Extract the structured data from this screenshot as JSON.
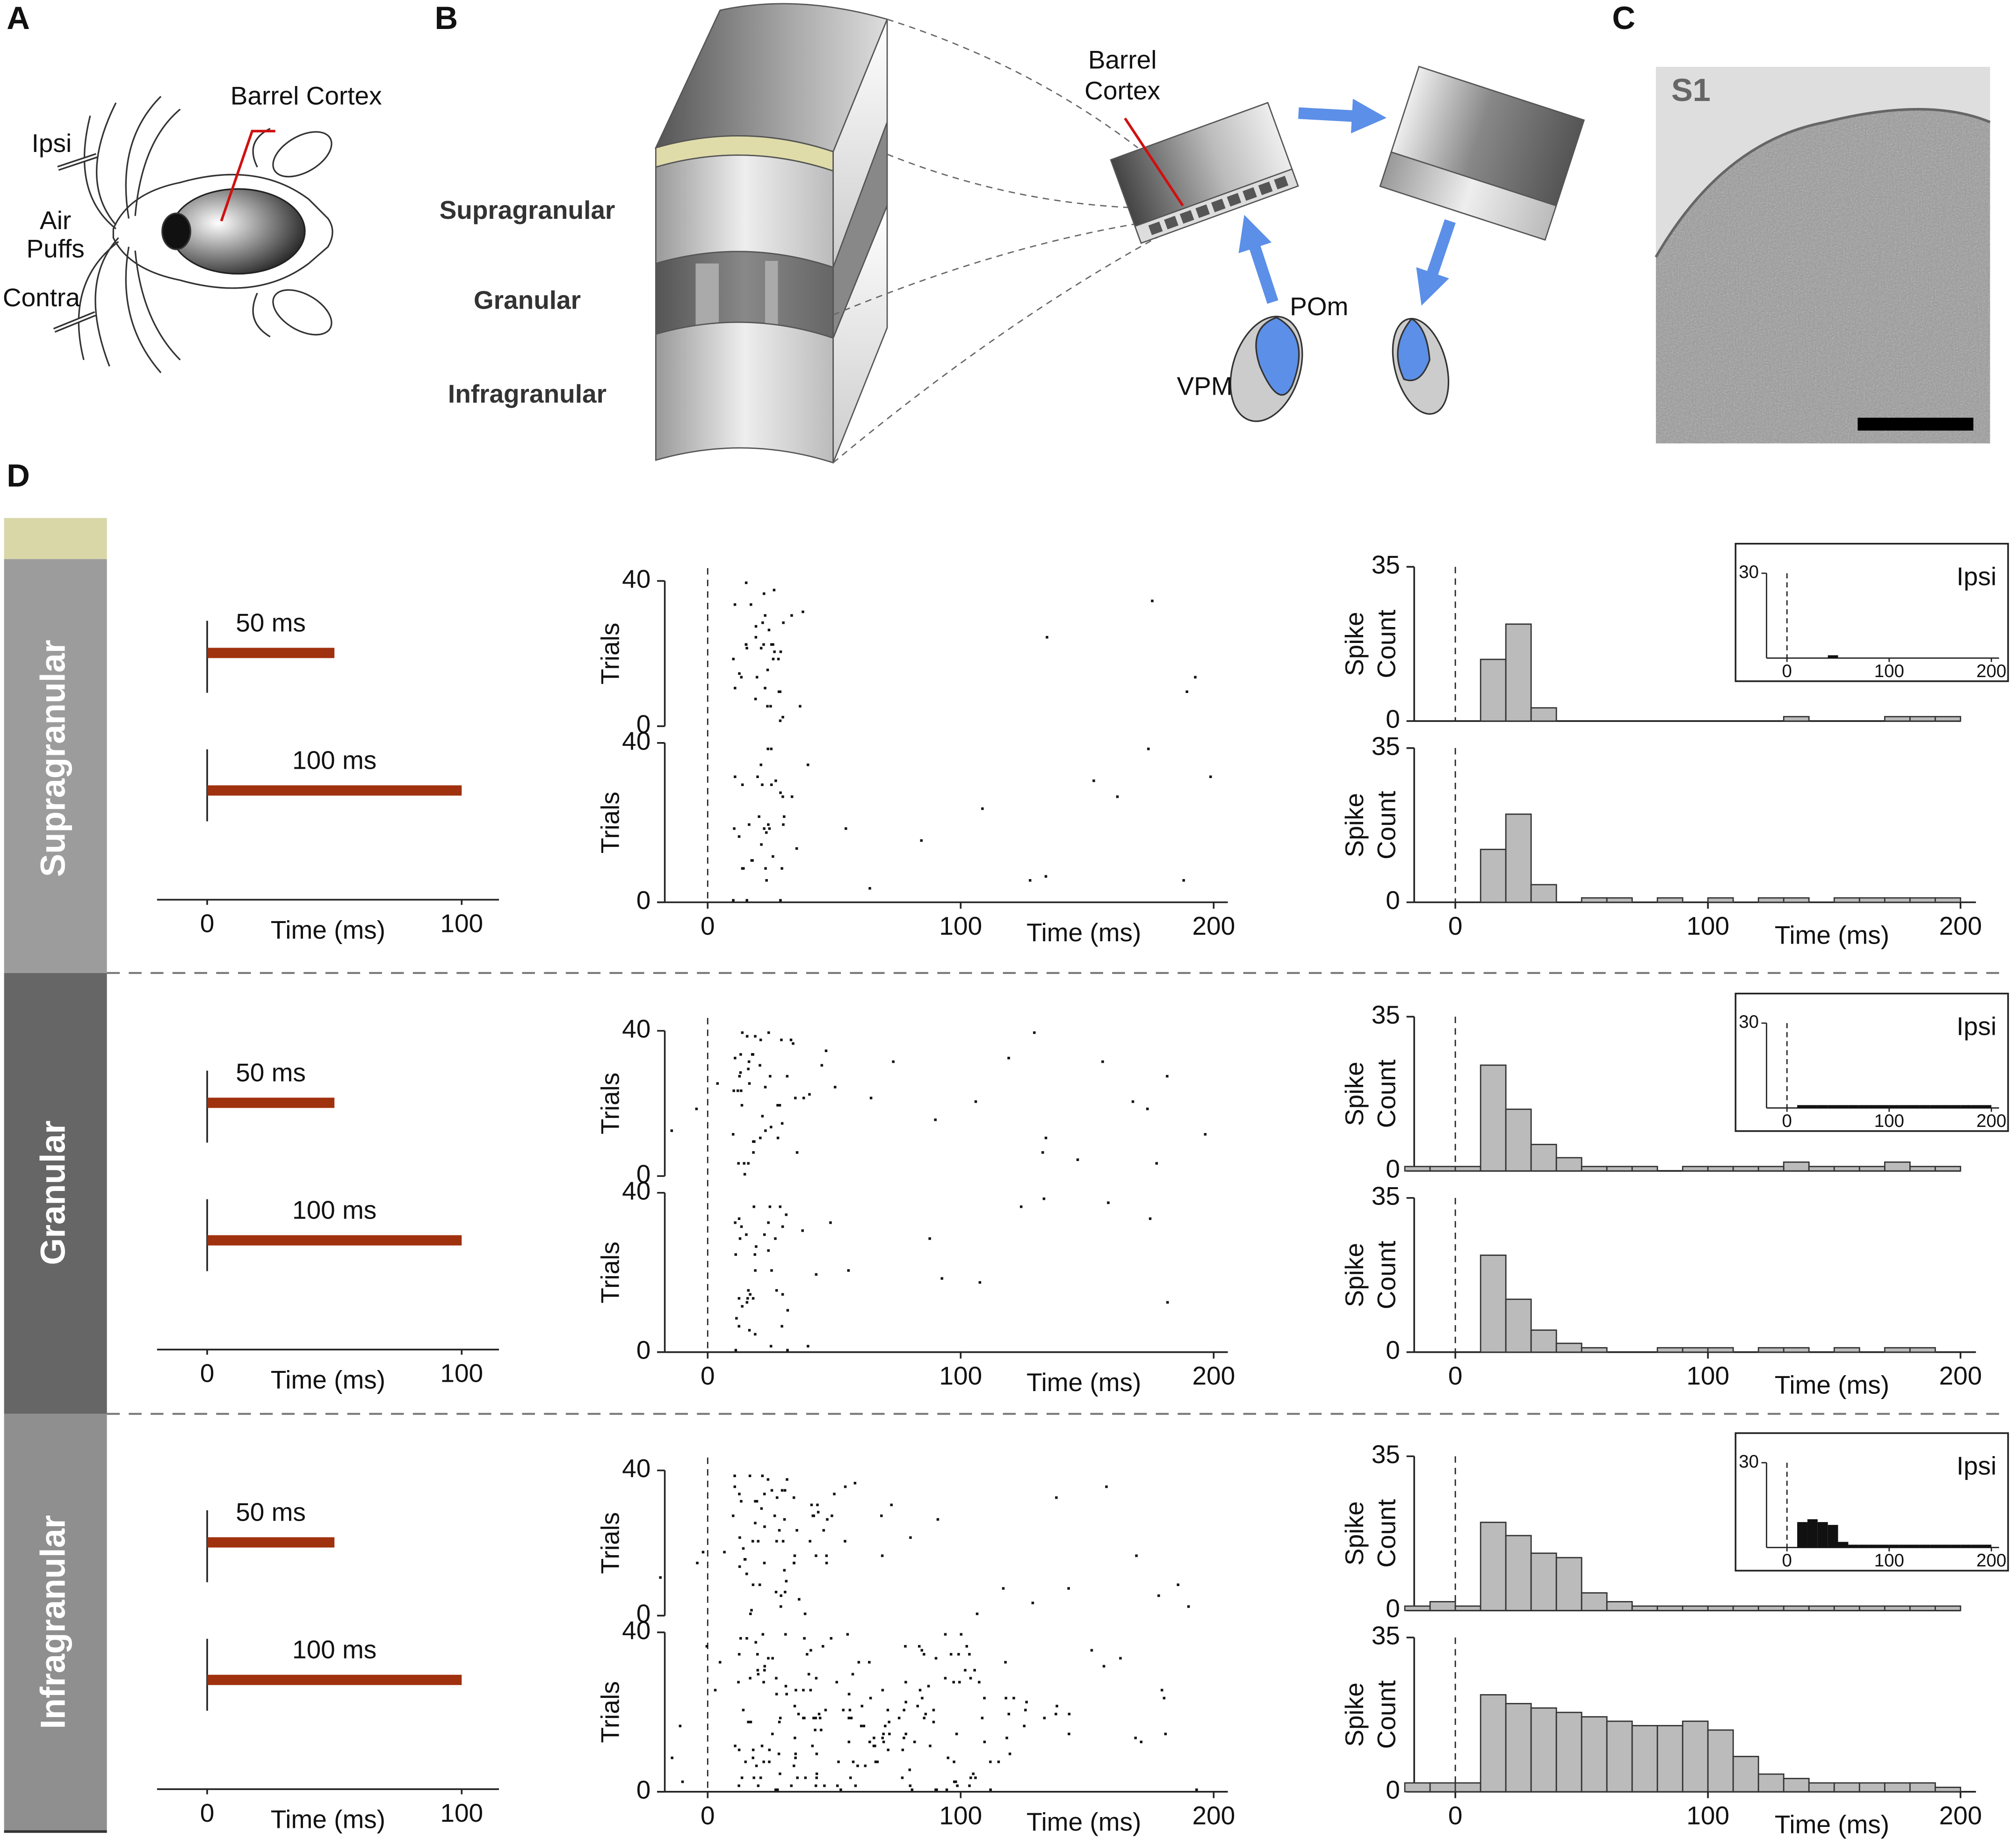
{
  "panel_labels": [
    "A",
    "B",
    "C",
    "D"
  ],
  "panel_a": {
    "barrel": "Barrel Cortex",
    "ipsi": "Ipsi",
    "air": [
      "Air",
      "Puffs"
    ],
    "contra": "Contra"
  },
  "panel_b": {
    "layers": [
      "Supragranular",
      "Granular",
      "Infragranular"
    ],
    "barrel": [
      "Barrel",
      "Cortex"
    ],
    "pom": "POm",
    "vpm": "VPM"
  },
  "panel_c": {
    "label": "S1"
  },
  "panel_d": {
    "time_label": "Time (ms)",
    "stim": {
      "xticks": [
        0,
        100
      ]
    },
    "raster": {
      "ylabel": "Trials",
      "ylim": [
        0,
        40
      ],
      "yticks": [
        0,
        40
      ],
      "xlim": [
        -20,
        200
      ],
      "xticks": [
        0,
        100,
        200
      ]
    },
    "hist": {
      "ylabel": [
        "Spike",
        "Count"
      ],
      "ylim": [
        0,
        35
      ],
      "yticks": [
        0,
        35
      ],
      "xticks": [
        0,
        100,
        200
      ],
      "bins": [
        -20,
        -10,
        0,
        10,
        20,
        30,
        40,
        50,
        60,
        70,
        80,
        90,
        100,
        110,
        120,
        130,
        140,
        150,
        160,
        170,
        180,
        190,
        200
      ]
    },
    "inset": {
      "label": "Ipsi",
      "ylim": [
        0,
        30
      ],
      "yticks": [
        30
      ],
      "xticks": [
        0,
        100,
        200
      ]
    },
    "rows": [
      {
        "name": "Supragranular",
        "stimuli": [
          {
            "label": "50 ms",
            "duration": 50,
            "counts": [
              0,
              0,
              0,
              14,
              22,
              3,
              0,
              0,
              0,
              0,
              0,
              0,
              0,
              0,
              0,
              1,
              0,
              0,
              0,
              1,
              1,
              1
            ]
          },
          {
            "label": "100 ms",
            "duration": 100,
            "counts": [
              0,
              0,
              0,
              12,
              20,
              4,
              0,
              1,
              1,
              0,
              1,
              0,
              1,
              0,
              1,
              1,
              0,
              1,
              1,
              1,
              1,
              1
            ]
          }
        ],
        "inset_counts": [
          0,
          0,
          0,
          0,
          0,
          0,
          1,
          0,
          0,
          0,
          0,
          0,
          0,
          0,
          0,
          0,
          0,
          0,
          0,
          0,
          0,
          0
        ]
      },
      {
        "name": "Granular",
        "stimuli": [
          {
            "label": "50 ms",
            "duration": 50,
            "counts": [
              1,
              1,
              1,
              24,
              14,
              6,
              3,
              1,
              1,
              1,
              0,
              1,
              1,
              1,
              1,
              2,
              1,
              1,
              1,
              2,
              1,
              1
            ]
          },
          {
            "label": "100 ms",
            "duration": 100,
            "counts": [
              0,
              0,
              0,
              22,
              12,
              5,
              2,
              1,
              0,
              0,
              1,
              1,
              1,
              0,
              1,
              1,
              0,
              1,
              0,
              1,
              1,
              0
            ]
          }
        ],
        "inset_counts": [
          0,
          0,
          0,
          1,
          1,
          1,
          1,
          1,
          1,
          1,
          1,
          1,
          1,
          1,
          1,
          1,
          1,
          1,
          1,
          1,
          1,
          1
        ]
      },
      {
        "name": "Infragranular",
        "stimuli": [
          {
            "label": "50 ms",
            "duration": 50,
            "counts": [
              1,
              2,
              1,
              20,
              17,
              13,
              12,
              4,
              2,
              1,
              1,
              1,
              1,
              1,
              1,
              1,
              1,
              1,
              1,
              1,
              1,
              1
            ]
          },
          {
            "label": "100 ms",
            "duration": 100,
            "counts": [
              2,
              2,
              2,
              22,
              20,
              19,
              18,
              17,
              16,
              15,
              15,
              16,
              14,
              8,
              4,
              3,
              2,
              2,
              2,
              2,
              2,
              1
            ]
          }
        ],
        "inset_counts": [
          0,
          0,
          0,
          9,
          10,
          9,
          8,
          2,
          1,
          1,
          1,
          1,
          1,
          1,
          1,
          1,
          1,
          1,
          1,
          1,
          1,
          1
        ]
      }
    ]
  }
}
